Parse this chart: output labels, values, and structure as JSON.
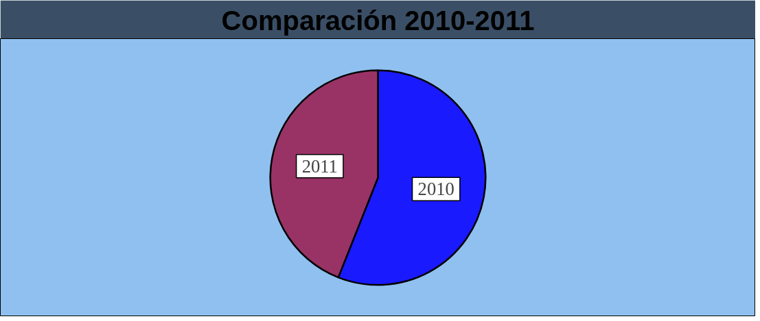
{
  "chart_data": {
    "type": "pie",
    "title": "Comparación 2010-2011",
    "categories": [
      "2010",
      "2011"
    ],
    "values": [
      56,
      44
    ],
    "colors": [
      "#1a1aff",
      "#993366"
    ]
  }
}
